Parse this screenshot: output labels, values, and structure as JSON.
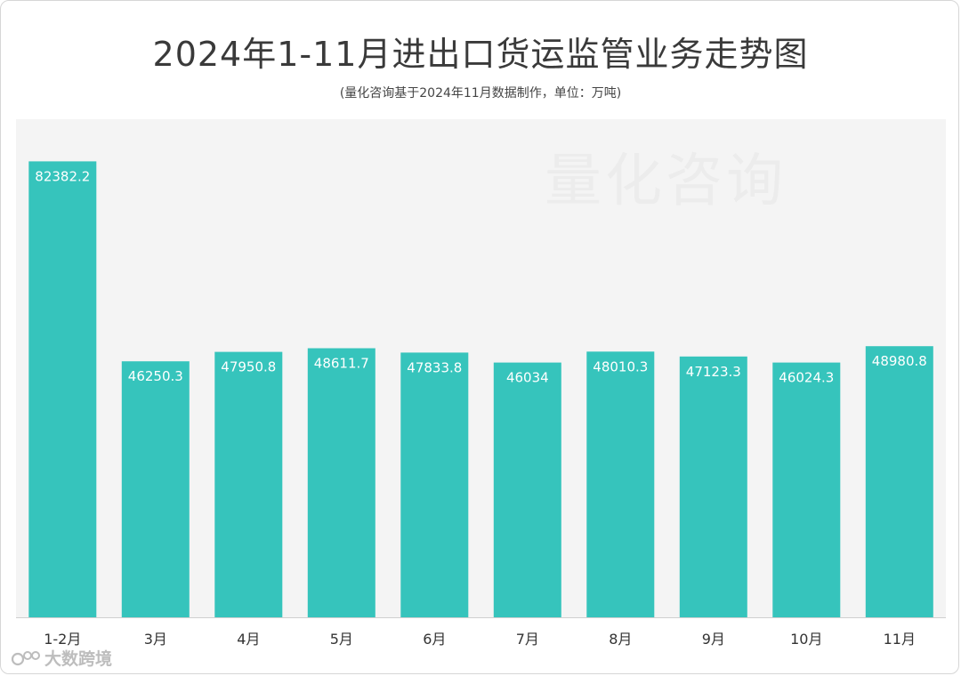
{
  "title": "2024年1-11月进出口货运监管业务走势图",
  "subtitle": "(量化咨询基于2024年11月数据制作，单位：万吨)",
  "watermark": "量化咨询",
  "logo_text": "大数跨境",
  "colors": {
    "bar": "#36c4bc",
    "bar_label": "#ffffff",
    "axis_label": "#333333",
    "plot_bg": "#f4f4f4"
  },
  "chart_data": {
    "type": "bar",
    "title": "2024年1-11月进出口货运监管业务走势图",
    "subtitle": "(量化咨询基于2024年11月数据制作，单位：万吨)",
    "categories": [
      "1-2月",
      "3月",
      "4月",
      "5月",
      "6月",
      "7月",
      "8月",
      "9月",
      "10月",
      "11月"
    ],
    "values": [
      82382.2,
      46250.3,
      47950.8,
      48611.7,
      47833.8,
      46034,
      48010.3,
      47123.3,
      46024.3,
      48980.8
    ],
    "value_labels": [
      "82382.2",
      "46250.3",
      "47950.8",
      "48611.7",
      "47833.8",
      "46034",
      "48010.3",
      "47123.3",
      "46024.3",
      "48980.8"
    ],
    "ylim": [
      0,
      90000
    ],
    "grid": false,
    "legend": "none"
  }
}
